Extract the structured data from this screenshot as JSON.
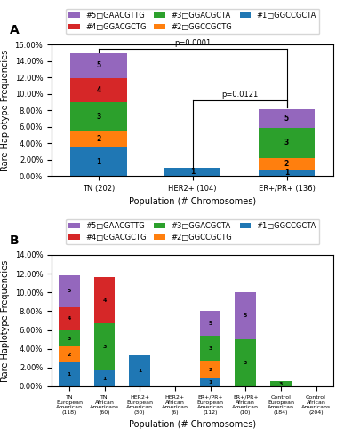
{
  "chart_data": [
    {
      "type": "bar",
      "stacked": true,
      "title": "A",
      "categories": [
        "TN (202)",
        "HER2+ (104)",
        "ER+/PR+ (136)"
      ],
      "series": [
        {
          "name": "#1□GGCCGCTA",
          "label": "1",
          "values": [
            3.47,
            0.96,
            0.74
          ]
        },
        {
          "name": "#2□GGCCGCTG",
          "label": "2",
          "values": [
            2.0,
            0.0,
            1.47
          ]
        },
        {
          "name": "#3□GGACGCTA",
          "label": "3",
          "values": [
            3.47,
            0.0,
            3.68
          ]
        },
        {
          "name": "#4□GGACGCTG",
          "label": "4",
          "values": [
            3.0,
            0.0,
            0.0
          ]
        },
        {
          "name": "#5□GAACGTTG",
          "label": "5",
          "values": [
            2.97,
            0.0,
            2.21
          ]
        }
      ],
      "ylim": [
        0,
        16
      ],
      "yticks": [
        {
          "value": 0,
          "label": "0.00%"
        },
        {
          "value": 2,
          "label": "2.00%"
        },
        {
          "value": 4,
          "label": "4.00%"
        },
        {
          "value": 6,
          "label": "6.00%"
        },
        {
          "value": 8,
          "label": "8.00%"
        },
        {
          "value": 10,
          "label": "10.00%"
        },
        {
          "value": 12,
          "label": "12.00%"
        },
        {
          "value": 14,
          "label": "14.00%"
        },
        {
          "value": 16,
          "label": "16.00%"
        }
      ],
      "ylabel": "Rare Haplotype Frequencies",
      "xlabel": "Population (# Chromosomes)",
      "legend": "top",
      "annotations": [
        {
          "text": "p=0.0001",
          "from": "TN (202)",
          "to": "ER+/PR+ (136)",
          "y": 15.5,
          "from_y": 15.0,
          "to_y": 8.3
        },
        {
          "text": "p=0.0121",
          "from": "HER2+ (104)",
          "to": "ER+/PR+ (136)",
          "y": 9.2,
          "from_y": 1.0,
          "to_y": 8.3
        }
      ]
    },
    {
      "type": "bar",
      "stacked": true,
      "title": "B",
      "categories": [
        "TN\nEuropean\nAmerican\n(118)",
        "TN\nAfrican\nAmericans\n(60)",
        "HER2+\nEuropean\nAmerican\n(30)",
        "HER2+\nAfrican\nAmerican\n(6)",
        "ER+/PR+\nEuropean\nAmerican\n(112)",
        "ER+/PR+\nAfrican\nAmerican\n(10)",
        "Control\nEuropean\nAmerican\n(184)",
        "Control\nAfrican\nAmericans\n(204)"
      ],
      "series": [
        {
          "name": "#1□GGCCGCTA",
          "label": "1",
          "values": [
            2.54,
            1.67,
            3.33,
            0.0,
            0.89,
            0.0,
            0.0,
            0.0
          ]
        },
        {
          "name": "#2□GGCCGCTG",
          "label": "2",
          "values": [
            1.69,
            0.0,
            0.0,
            0.0,
            1.79,
            0.0,
            0.0,
            0.0
          ]
        },
        {
          "name": "#3□GGACGCTA",
          "label": "3",
          "values": [
            1.69,
            5.0,
            0.0,
            0.0,
            2.68,
            5.0,
            0.54,
            0.0
          ]
        },
        {
          "name": "#4□GGACGCTG",
          "label": "4",
          "values": [
            2.54,
            5.0,
            0.0,
            0.0,
            0.0,
            0.0,
            0.0,
            0.0
          ]
        },
        {
          "name": "#5□GAACGTTG",
          "label": "5",
          "values": [
            3.39,
            0.0,
            0.0,
            0.0,
            2.68,
            5.0,
            0.0,
            0.0
          ]
        }
      ],
      "ylim": [
        0,
        14
      ],
      "yticks": [
        {
          "value": 0,
          "label": "0.00%"
        },
        {
          "value": 2,
          "label": "2.00%"
        },
        {
          "value": 4,
          "label": "4.00%"
        },
        {
          "value": 6,
          "label": "6.00%"
        },
        {
          "value": 8,
          "label": "8.00%"
        },
        {
          "value": 10,
          "label": "10.00%"
        },
        {
          "value": 12,
          "label": "12.00%"
        },
        {
          "value": 14,
          "label": "14.00%"
        }
      ],
      "ylabel": "Rare Haplotype Frequencies",
      "xlabel": "Population (# Chromosomes)",
      "legend": "top"
    }
  ]
}
